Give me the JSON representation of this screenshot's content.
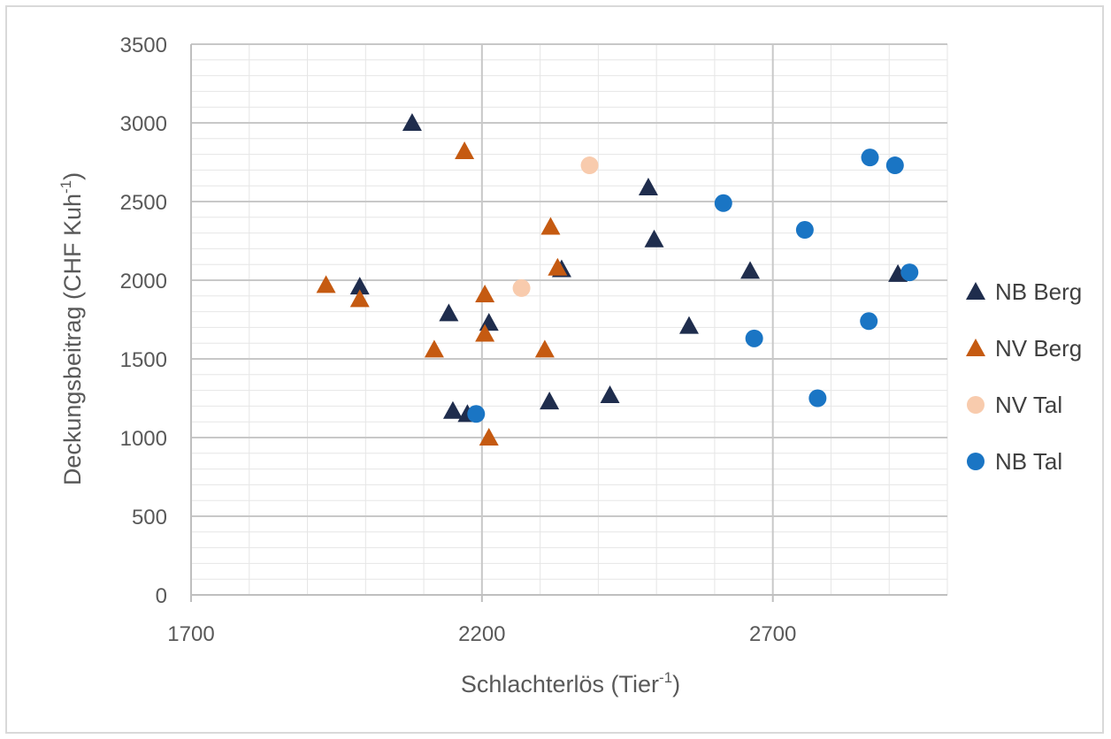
{
  "chart_data": {
    "type": "scatter",
    "title": "",
    "xlabel": "Schlachterlös (Tier",
    "xlabel_sup": "-1",
    "xlabel_end": ")",
    "ylabel": "Deckungsbeitrag (CHF Kuh",
    "ylabel_sup": "-1",
    "ylabel_end": ")",
    "xlim": [
      1700,
      3000
    ],
    "ylim": [
      0,
      3500
    ],
    "x_ticks": [
      1700,
      2200,
      2700
    ],
    "y_ticks": [
      0,
      500,
      1000,
      1500,
      2000,
      2500,
      3000,
      3500
    ],
    "grid": true,
    "legend_position": "right",
    "series": [
      {
        "name": "NB Berg",
        "marker": "triangle",
        "color": "#1f2d4d",
        "points": [
          [
            2080,
            3000
          ],
          [
            1990,
            1960
          ],
          [
            2143,
            1790
          ],
          [
            2212,
            1730
          ],
          [
            2150,
            1170
          ],
          [
            2175,
            1150
          ],
          [
            2316,
            1230
          ],
          [
            2420,
            1270
          ],
          [
            2486,
            2590
          ],
          [
            2496,
            2260
          ],
          [
            2556,
            1710
          ],
          [
            2661,
            2060
          ],
          [
            2337,
            2070
          ],
          [
            2915,
            2040
          ]
        ]
      },
      {
        "name": "NV Berg",
        "marker": "triangle",
        "color": "#c55a11",
        "points": [
          [
            2170,
            2820
          ],
          [
            1932,
            1970
          ],
          [
            1990,
            1880
          ],
          [
            2205,
            1910
          ],
          [
            2205,
            1660
          ],
          [
            2118,
            1560
          ],
          [
            2308,
            1560
          ],
          [
            2318,
            2340
          ],
          [
            2330,
            2080
          ],
          [
            2212,
            1000
          ]
        ]
      },
      {
        "name": "NV Tal",
        "marker": "circle",
        "color": "#f8cbad",
        "points": [
          [
            2268,
            1950
          ],
          [
            2385,
            2730
          ]
        ]
      },
      {
        "name": "NB Tal",
        "marker": "circle",
        "color": "#1a75c4",
        "points": [
          [
            2615,
            2490
          ],
          [
            2755,
            2320
          ],
          [
            2668,
            1630
          ],
          [
            2777,
            1250
          ],
          [
            2865,
            1740
          ],
          [
            2867,
            2780
          ],
          [
            2910,
            2730
          ],
          [
            2935,
            2050
          ],
          [
            2190,
            1150
          ]
        ]
      }
    ]
  }
}
